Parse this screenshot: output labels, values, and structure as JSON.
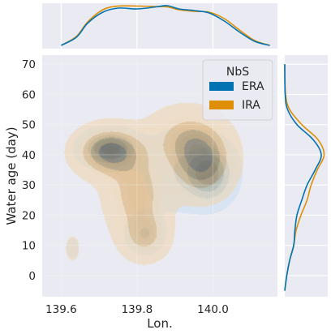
{
  "chart_data": {
    "type": "kde-jointplot",
    "xlabel": "Lon.",
    "ylabel": "Water age (day)",
    "xlim": [
      139.55,
      140.17
    ],
    "ylim": [
      -7,
      73
    ],
    "xticks": [
      139.6,
      139.8,
      140.0
    ],
    "xtick_labels": [
      "139.6",
      "139.8",
      "140.0"
    ],
    "yticks": [
      0,
      10,
      20,
      30,
      40,
      50,
      60,
      70
    ],
    "ytick_labels": [
      "0",
      "10",
      "20",
      "30",
      "40",
      "50",
      "60",
      "70"
    ],
    "grid": true,
    "legend": {
      "title": "NbS",
      "placement": "top-right",
      "entries": [
        {
          "label": "ERA",
          "color": "#0173b2"
        },
        {
          "label": "IRA",
          "color": "#de8f05"
        }
      ]
    },
    "colors": {
      "ERA": "#0173b2",
      "IRA": "#de8f05",
      "background": "#eaeaf2",
      "grid": "#ffffff"
    },
    "series": [
      {
        "name": "ERA",
        "clusters": [
          {
            "x": 139.73,
            "y": 42,
            "sx": 0.045,
            "sy": 3.5,
            "w": 1.0
          },
          {
            "x": 139.99,
            "y": 34,
            "sx": 0.04,
            "sy": 6,
            "w": 1.0
          },
          {
            "x": 139.82,
            "y": 14,
            "sx": 0.03,
            "sy": 4,
            "w": 0.45
          },
          {
            "x": 139.9,
            "y": 35,
            "sx": 0.05,
            "sy": 8,
            "w": 0.35
          },
          {
            "x": 139.63,
            "y": 9,
            "sx": 0.012,
            "sy": 2.5,
            "w": 0.2
          }
        ],
        "marginal_x": [
          {
            "x": 139.6,
            "d": 0.0
          },
          {
            "x": 139.64,
            "d": 0.2
          },
          {
            "x": 139.67,
            "d": 0.55
          },
          {
            "x": 139.71,
            "d": 0.82
          },
          {
            "x": 139.75,
            "d": 0.92
          },
          {
            "x": 139.8,
            "d": 0.9
          },
          {
            "x": 139.85,
            "d": 0.95
          },
          {
            "x": 139.88,
            "d": 0.98
          },
          {
            "x": 139.91,
            "d": 0.9
          },
          {
            "x": 139.95,
            "d": 0.86
          },
          {
            "x": 139.99,
            "d": 0.8
          },
          {
            "x": 140.03,
            "d": 0.6
          },
          {
            "x": 140.07,
            "d": 0.33
          },
          {
            "x": 140.11,
            "d": 0.1
          },
          {
            "x": 140.15,
            "d": 0.0
          }
        ],
        "marginal_y": [
          {
            "y": -5,
            "d": 0.0
          },
          {
            "y": 0,
            "d": 0.05
          },
          {
            "y": 5,
            "d": 0.12
          },
          {
            "y": 10,
            "d": 0.22
          },
          {
            "y": 15,
            "d": 0.25
          },
          {
            "y": 20,
            "d": 0.3
          },
          {
            "y": 25,
            "d": 0.42
          },
          {
            "y": 30,
            "d": 0.55
          },
          {
            "y": 35,
            "d": 0.75
          },
          {
            "y": 40,
            "d": 0.9
          },
          {
            "y": 45,
            "d": 0.7
          },
          {
            "y": 50,
            "d": 0.3
          },
          {
            "y": 55,
            "d": 0.07
          },
          {
            "y": 60,
            "d": 0.01
          },
          {
            "y": 70,
            "d": 0.0
          }
        ]
      },
      {
        "name": "IRA",
        "clusters": [
          {
            "x": 139.73,
            "y": 41,
            "sx": 0.055,
            "sy": 5,
            "w": 0.95
          },
          {
            "x": 139.97,
            "y": 38,
            "sx": 0.05,
            "sy": 7,
            "w": 0.9
          },
          {
            "x": 139.8,
            "y": 27,
            "sx": 0.05,
            "sy": 8,
            "w": 0.55
          },
          {
            "x": 139.82,
            "y": 13,
            "sx": 0.04,
            "sy": 5,
            "w": 0.45
          },
          {
            "x": 139.92,
            "y": 46,
            "sx": 0.06,
            "sy": 6,
            "w": 0.4
          },
          {
            "x": 139.63,
            "y": 9,
            "sx": 0.013,
            "sy": 3,
            "w": 0.2
          }
        ],
        "marginal_x": [
          {
            "x": 139.6,
            "d": 0.0
          },
          {
            "x": 139.64,
            "d": 0.22
          },
          {
            "x": 139.67,
            "d": 0.58
          },
          {
            "x": 139.71,
            "d": 0.88
          },
          {
            "x": 139.75,
            "d": 0.97
          },
          {
            "x": 139.8,
            "d": 0.97
          },
          {
            "x": 139.85,
            "d": 0.96
          },
          {
            "x": 139.88,
            "d": 0.95
          },
          {
            "x": 139.91,
            "d": 0.88
          },
          {
            "x": 139.95,
            "d": 0.84
          },
          {
            "x": 139.99,
            "d": 0.82
          },
          {
            "x": 140.03,
            "d": 0.66
          },
          {
            "x": 140.07,
            "d": 0.38
          },
          {
            "x": 140.11,
            "d": 0.12
          },
          {
            "x": 140.15,
            "d": 0.0
          }
        ],
        "marginal_y": [
          {
            "y": -5,
            "d": 0.0
          },
          {
            "y": 0,
            "d": 0.05
          },
          {
            "y": 5,
            "d": 0.12
          },
          {
            "y": 10,
            "d": 0.22
          },
          {
            "y": 15,
            "d": 0.28
          },
          {
            "y": 20,
            "d": 0.4
          },
          {
            "y": 25,
            "d": 0.55
          },
          {
            "y": 30,
            "d": 0.65
          },
          {
            "y": 35,
            "d": 0.8
          },
          {
            "y": 40,
            "d": 0.97
          },
          {
            "y": 45,
            "d": 0.82
          },
          {
            "y": 50,
            "d": 0.42
          },
          {
            "y": 55,
            "d": 0.12
          },
          {
            "y": 60,
            "d": 0.02
          },
          {
            "y": 70,
            "d": 0.0
          }
        ]
      }
    ]
  }
}
